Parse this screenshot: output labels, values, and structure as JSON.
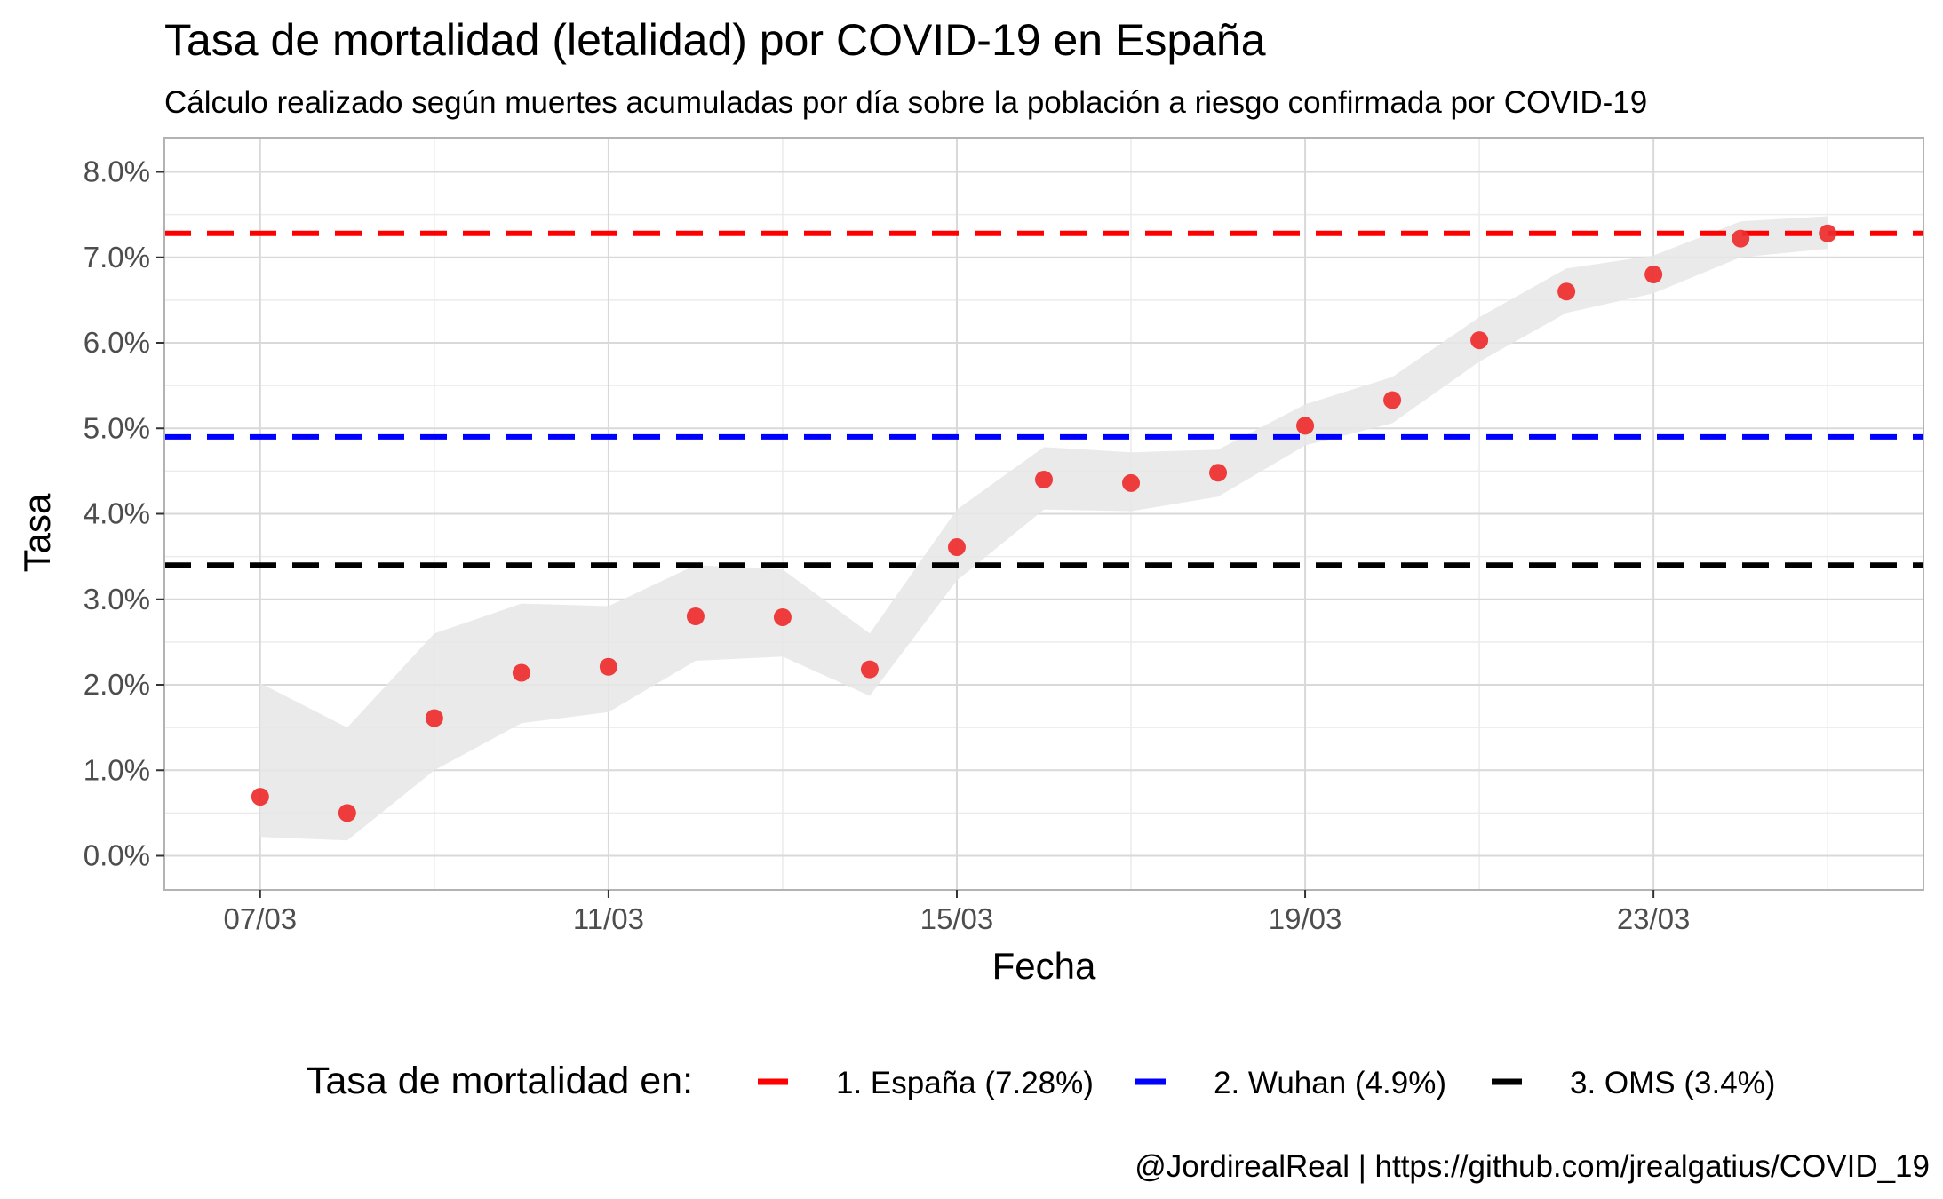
{
  "chart_data": {
    "type": "scatter",
    "title": "Tasa de mortalidad (letalidad) por COVID-19 en España",
    "subtitle": "Cálculo realizado según muertes acumuladas por día sobre la población a riesgo confirmada por COVID-19",
    "xlabel": "Fecha",
    "ylabel": "Tasa",
    "caption": "@JordirealReal | https://github.com/jrealgatius/COVID_19",
    "x_ticks": [
      "07/03",
      "11/03",
      "15/03",
      "19/03",
      "23/03"
    ],
    "y_ticks": [
      "0.0%",
      "1.0%",
      "2.0%",
      "3.0%",
      "4.0%",
      "5.0%",
      "6.0%",
      "7.0%",
      "8.0%"
    ],
    "ylim": [
      -0.4,
      8.4
    ],
    "xlim": [
      "06/03",
      "26/03"
    ],
    "grid": true,
    "points": {
      "color": "#ee2c2c",
      "x": [
        "07/03",
        "08/03",
        "09/03",
        "10/03",
        "11/03",
        "12/03",
        "13/03",
        "14/03",
        "15/03",
        "16/03",
        "17/03",
        "18/03",
        "19/03",
        "20/03",
        "21/03",
        "22/03",
        "23/03",
        "24/03",
        "25/03"
      ],
      "y": [
        0.69,
        0.5,
        1.61,
        2.14,
        2.21,
        2.8,
        2.79,
        2.18,
        3.61,
        4.4,
        4.36,
        4.48,
        5.03,
        5.33,
        6.03,
        6.6,
        6.8,
        7.22,
        7.28
      ],
      "ci_low": [
        0.22,
        0.18,
        1.0,
        1.55,
        1.68,
        2.28,
        2.33,
        1.87,
        3.22,
        4.05,
        4.03,
        4.2,
        4.8,
        5.06,
        5.78,
        6.35,
        6.58,
        7.0,
        7.1
      ],
      "ci_high": [
        2.02,
        1.5,
        2.6,
        2.95,
        2.92,
        3.4,
        3.35,
        2.6,
        4.05,
        4.78,
        4.72,
        4.75,
        5.28,
        5.6,
        6.3,
        6.87,
        7.02,
        7.42,
        7.48
      ]
    },
    "reference_lines": [
      {
        "name": "1. España (7.28%)",
        "value": 7.28,
        "color": "#ff0000"
      },
      {
        "name": "2. Wuhan (4.9%)",
        "value": 4.9,
        "color": "#0000ff"
      },
      {
        "name": "3. OMS (3.4%)",
        "value": 3.4,
        "color": "#000000"
      }
    ],
    "legend": {
      "title": "Tasa de mortalidad en:",
      "position": "bottom"
    }
  }
}
